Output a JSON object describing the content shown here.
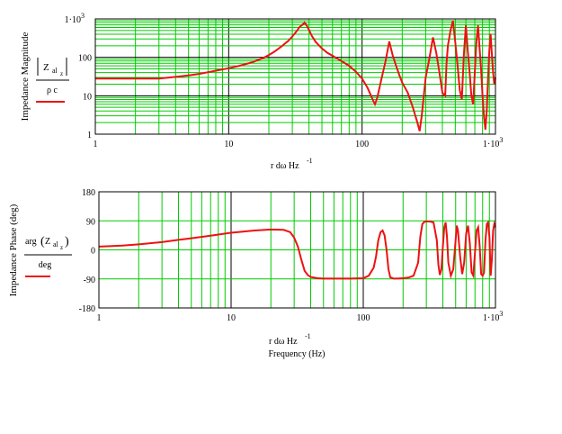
{
  "chart_data": [
    {
      "type": "line",
      "xscale": "log",
      "yscale": "log",
      "xlim": [
        1,
        1000
      ],
      "ylim": [
        1,
        1000
      ],
      "grid": true,
      "colors": {
        "series": "#ee1111",
        "grid": "#00cc00",
        "major_grid": "#000000"
      },
      "ylabel": "Impedance Magnitude",
      "legend": {
        "numerator_main": "Z",
        "numerator_sub": "al",
        "numerator_subsub": "z",
        "denominator": "ρ c"
      },
      "xlabel": {
        "main": "r dω Hz",
        "sup": "-1"
      },
      "xtick_labels": [
        {
          "value": 1,
          "text": "1"
        },
        {
          "value": 10,
          "text": "10"
        },
        {
          "value": 100,
          "text": "100"
        },
        {
          "value": 1000,
          "text": "1·10",
          "sup": "3"
        }
      ],
      "ytick_labels": [
        {
          "value": 1,
          "text": "1"
        },
        {
          "value": 10,
          "text": "10"
        },
        {
          "value": 100,
          "text": "100"
        },
        {
          "value": 1000,
          "text": "1·10",
          "sup": "3"
        }
      ],
      "series": [
        {
          "x": [
            1,
            2,
            3,
            4,
            5,
            6,
            7,
            8,
            10,
            12,
            15,
            18,
            20,
            22,
            25,
            28,
            30,
            32,
            34,
            36,
            37,
            38,
            40,
            42,
            45,
            50,
            55,
            60,
            70,
            80,
            90,
            100,
            110,
            120,
            125,
            130,
            140,
            150,
            160,
            170,
            180,
            190,
            200,
            220,
            240,
            260,
            270,
            280,
            290,
            300,
            320,
            340,
            360,
            380,
            400,
            420,
            430,
            440,
            460,
            480,
            500,
            520,
            540,
            560,
            580,
            600,
            620,
            640,
            660,
            680,
            700,
            720,
            740,
            760,
            780,
            800,
            820,
            840,
            860,
            880,
            900,
            920,
            940,
            960,
            980,
            1000
          ],
          "y": [
            28,
            28,
            28,
            31,
            34,
            37,
            41,
            45,
            52,
            60,
            74,
            95,
            115,
            140,
            195,
            270,
            350,
            460,
            620,
            720,
            800,
            720,
            520,
            360,
            250,
            170,
            130,
            110,
            80,
            60,
            42,
            28,
            16,
            8,
            6,
            9,
            28,
            80,
            260,
            110,
            60,
            35,
            22,
            12,
            5,
            2,
            1.2,
            3,
            10,
            30,
            95,
            330,
            130,
            40,
            12,
            10,
            70,
            200,
            500,
            900,
            250,
            60,
            14,
            8,
            120,
            680,
            150,
            40,
            10,
            6,
            40,
            250,
            680,
            180,
            50,
            10,
            3,
            1.3,
            4,
            30,
            150,
            410,
            120,
            40,
            20,
            30
          ]
        }
      ]
    },
    {
      "type": "line",
      "xscale": "log",
      "yscale": "linear",
      "xlim": [
        1,
        1000
      ],
      "ylim": [
        -180,
        180
      ],
      "grid": true,
      "colors": {
        "series": "#ee1111",
        "grid": "#00cc00",
        "major_grid": "#000000"
      },
      "ylabel": "Impedance Phase (deg)",
      "legend": {
        "prefix": "arg",
        "numerator_main": "Z",
        "numerator_sub": "al",
        "numerator_subsub": "z",
        "denominator": "deg"
      },
      "xlabel": {
        "main": "r dω Hz",
        "sup": "-1",
        "second_line": "Frequency (Hz)"
      },
      "xtick_labels": [
        {
          "value": 1,
          "text": "1"
        },
        {
          "value": 10,
          "text": "10"
        },
        {
          "value": 100,
          "text": "100"
        },
        {
          "value": 1000,
          "text": "1·10",
          "sup": "3"
        }
      ],
      "ytick_labels": [
        {
          "value": 180,
          "text": "180"
        },
        {
          "value": 90,
          "text": "90"
        },
        {
          "value": 0,
          "text": "0"
        },
        {
          "value": -90,
          "text": "-90"
        },
        {
          "value": -180,
          "text": "-180"
        }
      ],
      "series": [
        {
          "x": [
            1,
            1.5,
            2,
            3,
            4,
            5,
            7,
            10,
            15,
            20,
            25,
            28,
            30,
            32,
            34,
            36,
            38,
            40,
            45,
            50,
            60,
            80,
            100,
            110,
            120,
            125,
            130,
            135,
            140,
            145,
            150,
            155,
            160,
            170,
            180,
            200,
            220,
            240,
            260,
            270,
            280,
            290,
            300,
            320,
            340,
            360,
            370,
            380,
            390,
            400,
            410,
            420,
            430,
            440,
            460,
            480,
            500,
            510,
            520,
            540,
            560,
            580,
            600,
            620,
            640,
            660,
            680,
            700,
            720,
            740,
            760,
            780,
            800,
            820,
            840,
            860,
            880,
            900,
            920,
            940,
            960,
            980,
            1000
          ],
          "y": [
            10,
            13,
            17,
            24,
            31,
            36,
            44,
            53,
            60,
            63,
            62,
            55,
            38,
            10,
            -30,
            -65,
            -78,
            -84,
            -88,
            -89,
            -89,
            -89,
            -88,
            -80,
            -55,
            -20,
            30,
            55,
            60,
            45,
            0,
            -60,
            -85,
            -89,
            -89,
            -88,
            -86,
            -80,
            -40,
            40,
            80,
            87,
            88,
            88,
            85,
            30,
            -45,
            -78,
            -60,
            10,
            70,
            85,
            40,
            -40,
            -80,
            -60,
            30,
            75,
            60,
            -20,
            -75,
            -40,
            50,
            75,
            20,
            -70,
            -80,
            -10,
            60,
            70,
            10,
            -75,
            -80,
            -70,
            30,
            80,
            85,
            40,
            -80,
            -30,
            60,
            80,
            70
          ]
        }
      ]
    }
  ]
}
